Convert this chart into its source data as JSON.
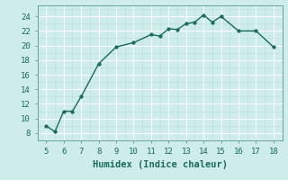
{
  "x": [
    5,
    5.5,
    6,
    6.5,
    7,
    8,
    9,
    10,
    11,
    11.5,
    12,
    12.5,
    13,
    13.5,
    14,
    14.5,
    15,
    16,
    17,
    18
  ],
  "y": [
    9.0,
    8.2,
    11.0,
    11.0,
    13.0,
    17.5,
    19.8,
    20.4,
    21.5,
    21.3,
    22.3,
    22.2,
    23.0,
    23.2,
    24.2,
    23.2,
    24.0,
    22.0,
    22.0,
    19.8
  ],
  "line_color": "#1a6b5a",
  "marker_color": "#1a6b5a",
  "bg_color": "#ceecea",
  "grid_major_color": "#ffffff",
  "grid_minor_color": "#b8dcd9",
  "xlabel": "Humidex (Indice chaleur)",
  "xlim": [
    4.5,
    18.5
  ],
  "ylim": [
    7,
    25.5
  ],
  "xticks": [
    5,
    6,
    7,
    8,
    9,
    10,
    11,
    12,
    13,
    14,
    15,
    16,
    17,
    18
  ],
  "yticks": [
    8,
    10,
    12,
    14,
    16,
    18,
    20,
    22,
    24
  ],
  "xlabel_fontsize": 7.5,
  "tick_fontsize": 6.5,
  "marker_size": 2.5,
  "line_width": 1.0
}
